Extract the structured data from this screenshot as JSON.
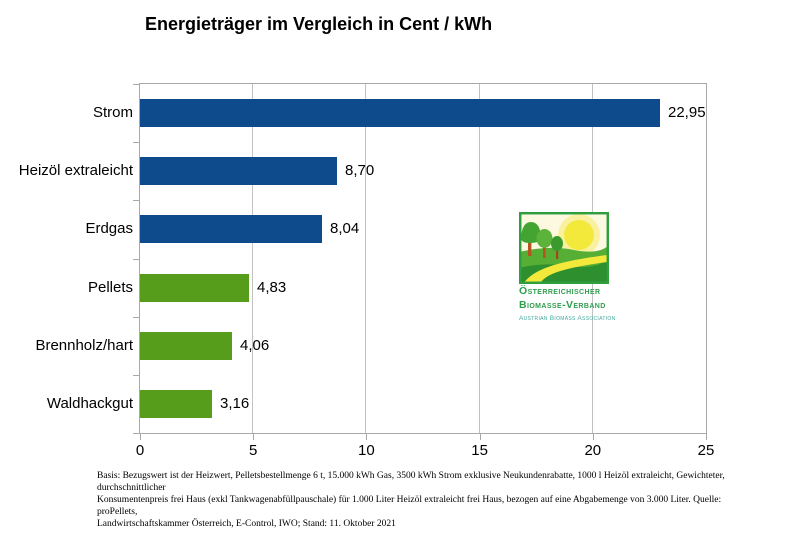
{
  "title": "Energieträger im Vergleich in Cent / kWh",
  "chart_data": {
    "type": "bar",
    "orientation": "horizontal",
    "title": "Energieträger im Vergleich in Cent / kWh",
    "categories": [
      "Strom",
      "Heizöl extraleicht",
      "Erdgas",
      "Pellets",
      "Brennholz/hart",
      "Waldhackgut"
    ],
    "values": [
      22.95,
      8.7,
      8.04,
      4.83,
      4.06,
      3.16
    ],
    "value_labels": [
      "22,95",
      "8,70",
      "8,04",
      "4,83",
      "4,06",
      "3,16"
    ],
    "bar_colors": [
      "#0e4b8c",
      "#0e4b8c",
      "#0e4b8c",
      "#579d1c",
      "#579d1c",
      "#579d1c"
    ],
    "xlabel": "",
    "ylabel": "",
    "xlim": [
      0,
      25
    ],
    "x_ticks": [
      0,
      5,
      10,
      15,
      20,
      25
    ],
    "x_tick_labels": [
      "0",
      "5",
      "10",
      "15",
      "20",
      "25"
    ],
    "grid": true,
    "legend": false
  },
  "logo": {
    "line1": "Österreichischer",
    "line2": "Biomasse-Verband",
    "line3": "Austrian Biomass Association",
    "colors": {
      "green": "#2f9e4e",
      "teal": "#45a8a0"
    }
  },
  "footnote": {
    "lines": [
      "Basis: Bezugswert ist der Heizwert, Pelletsbestellmenge 6 t, 15.000 kWh Gas, 3500 kWh Strom exklusive Neukundenrabatte, 1000 l Heizöl extraleicht, Gewichteter, durchschnittlicher",
      "Konsumentenpreis frei Haus (exkl Tankwagenabfüllpauschale) für 1.000 Liter Heizöl extraleicht frei Haus, bezogen auf eine Abgabemenge von 3.000 Liter. Quelle: proPellets,",
      "Landwirtschaftskammer Österreich, E-Control, IWO; Stand: 11. Oktober 2021"
    ]
  }
}
